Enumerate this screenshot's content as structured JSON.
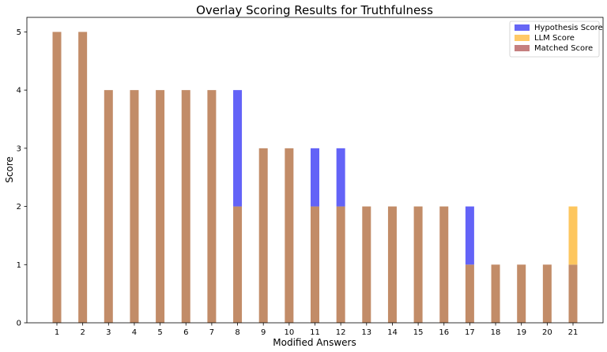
{
  "chart_data": {
    "type": "bar",
    "title": "Overlay Scoring Results for Truthfulness",
    "xlabel": "Modified Answers",
    "ylabel": "Score",
    "categories": [
      "1",
      "2",
      "3",
      "4",
      "5",
      "6",
      "7",
      "8",
      "9",
      "10",
      "11",
      "12",
      "13",
      "14",
      "15",
      "16",
      "17",
      "18",
      "19",
      "20",
      "21"
    ],
    "yticks": [
      0,
      1,
      2,
      3,
      4,
      5
    ],
    "ylim": [
      0,
      5.25
    ],
    "legend_position": "top-right",
    "grid": false,
    "series": [
      {
        "name": "Hypothesis Score",
        "color": "#0000ee",
        "opacity": 0.6,
        "values": [
          5,
          5,
          4,
          4,
          4,
          4,
          4,
          4,
          3,
          3,
          3,
          3,
          2,
          2,
          2,
          2,
          2,
          1,
          1,
          1,
          1
        ]
      },
      {
        "name": "LLM Score",
        "color": "#ffa500",
        "opacity": 0.6,
        "values": [
          5,
          5,
          4,
          4,
          4,
          4,
          4,
          2,
          3,
          3,
          2,
          2,
          2,
          2,
          2,
          2,
          1,
          1,
          1,
          1,
          2
        ]
      },
      {
        "name": "Matched Score",
        "color": "#8b0000",
        "opacity": 0.5,
        "values": [
          5,
          5,
          4,
          4,
          4,
          4,
          4,
          2,
          3,
          3,
          2,
          2,
          2,
          2,
          2,
          2,
          1,
          1,
          1,
          1,
          1
        ]
      }
    ],
    "overlap_color": "#c28c68"
  }
}
